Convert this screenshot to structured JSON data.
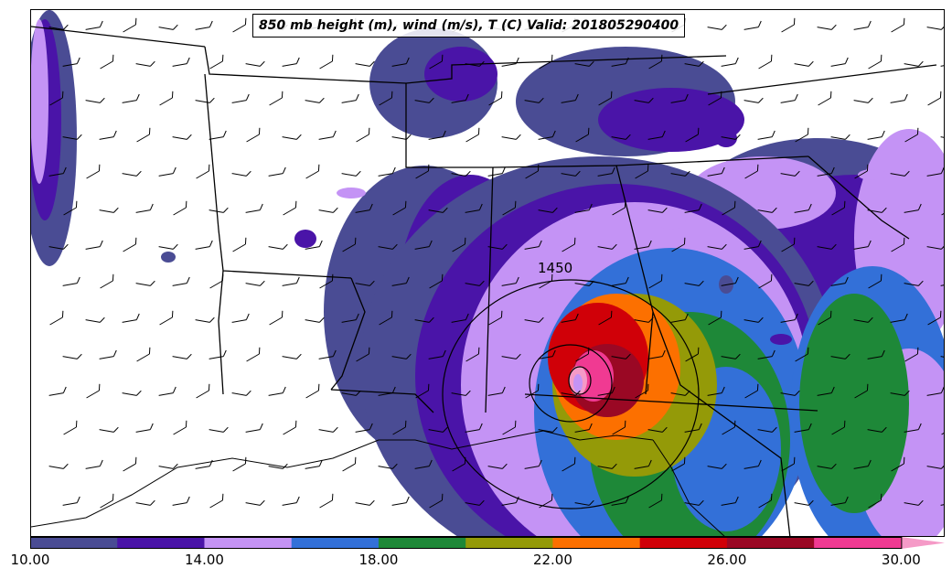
{
  "title": "850 mb height (m), wind (m/s), T (C) Valid: 201805290400",
  "contour_label": "1450",
  "colorbar": {
    "colors": [
      "#4a4c94",
      "#4a14a8",
      "#c493f5",
      "#3370d8",
      "#1e8838",
      "#949a08",
      "#fc7000",
      "#d00008",
      "#9a0824",
      "#f03a92",
      "#f59ac7"
    ],
    "ticks": [
      "10.00",
      "14.00",
      "18.00",
      "22.00",
      "26.00",
      "30.00"
    ]
  },
  "colors": {
    "state_lines": "#000000",
    "wind_barbs": "#000000"
  }
}
